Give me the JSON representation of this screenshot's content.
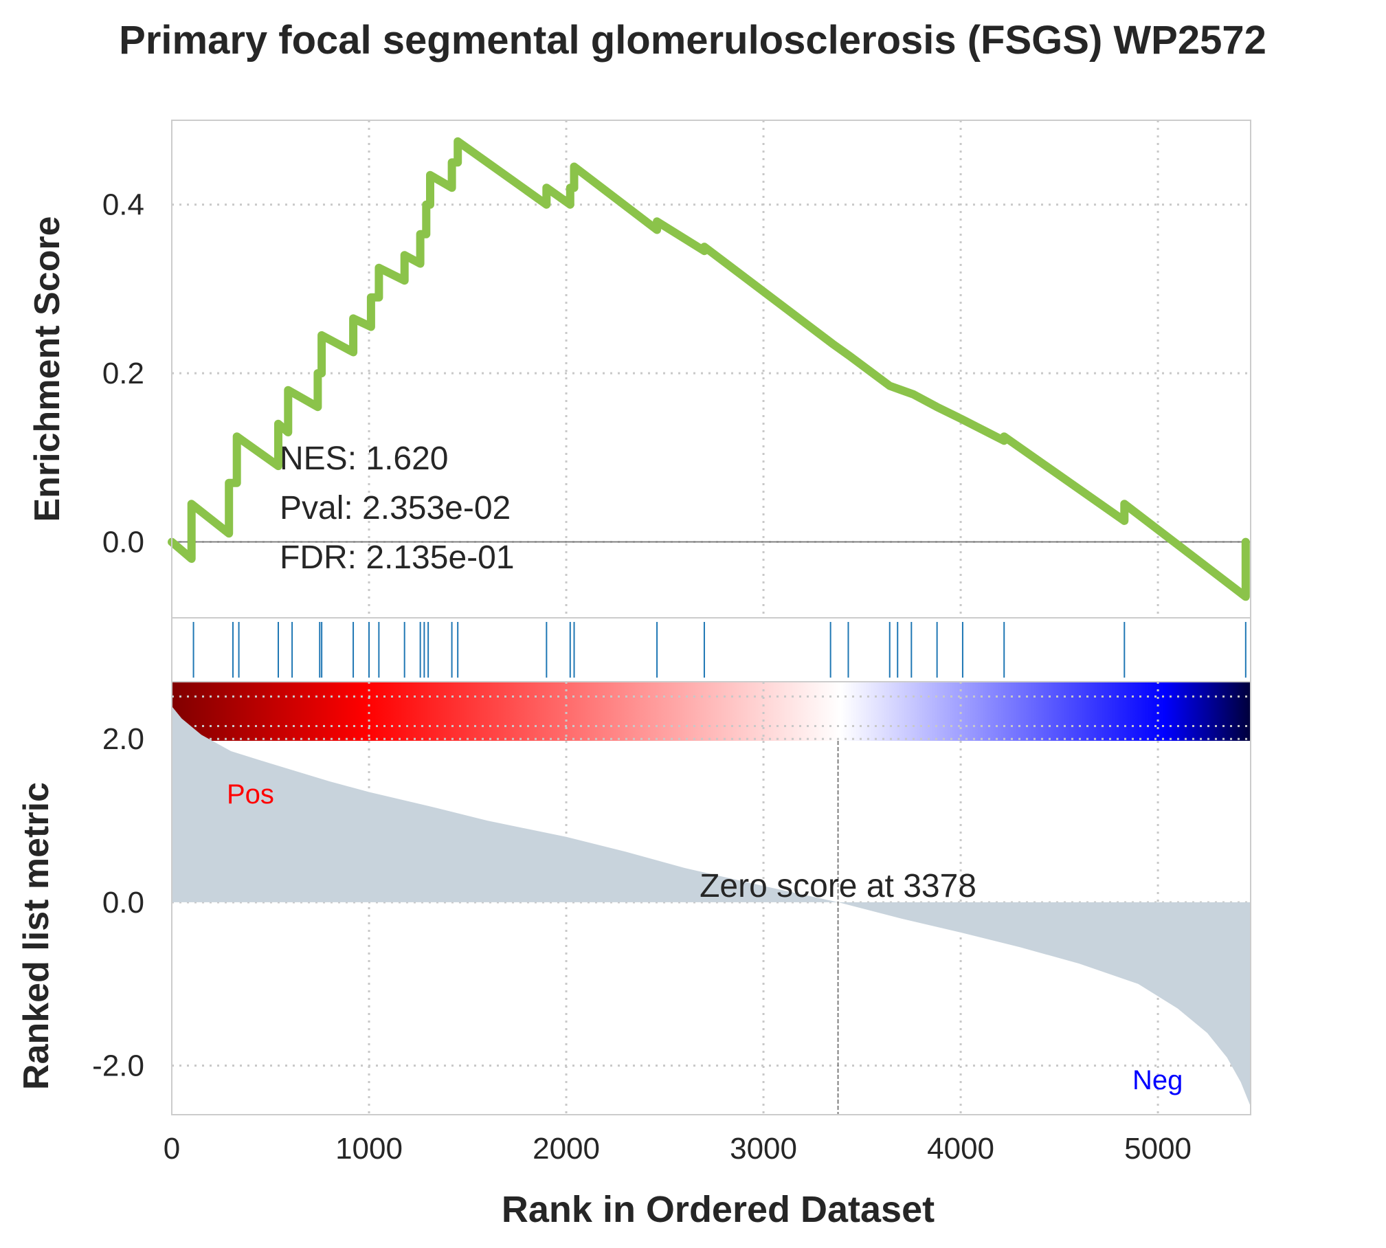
{
  "chart_data": {
    "type": "line",
    "title": "Primary focal segmental glomerulosclerosis (FSGS) WP2572",
    "xlabel": "Rank in Ordered Dataset",
    "xlim": [
      0,
      5470
    ],
    "x_ticks": [
      0,
      1000,
      2000,
      3000,
      4000,
      5000
    ],
    "grid": true,
    "es_panel": {
      "ylabel": "Enrichment Score",
      "ylim": [
        -0.09,
        0.5
      ],
      "y_ticks": [
        0.0,
        0.2,
        0.4
      ],
      "y_tick_labels": [
        "0.0",
        "0.2",
        "0.4"
      ],
      "line_color": "#8bc34a",
      "series": [
        {
          "x": [
            0,
            100,
            100,
            290,
            290,
            330,
            330,
            540,
            540,
            590,
            590,
            740,
            740,
            760,
            760,
            920,
            920,
            1010,
            1010,
            1050,
            1050,
            1180,
            1180,
            1260,
            1260,
            1290,
            1290,
            1310,
            1310,
            1420,
            1420,
            1450,
            1450,
            1900,
            1900,
            2020,
            2020,
            2040,
            2040,
            2460,
            2460,
            2700,
            2700,
            3350,
            3350,
            3440,
            3440,
            3640,
            3640,
            3700,
            3700,
            3760,
            3760,
            3880,
            3880,
            4010,
            4010,
            4220,
            4220,
            4830,
            4830,
            5445,
            5445
          ],
          "y": [
            0.0,
            -0.02,
            0.045,
            0.01,
            0.07,
            0.07,
            0.125,
            0.09,
            0.14,
            0.13,
            0.18,
            0.16,
            0.2,
            0.2,
            0.245,
            0.225,
            0.265,
            0.255,
            0.29,
            0.29,
            0.325,
            0.31,
            0.34,
            0.33,
            0.365,
            0.365,
            0.4,
            0.4,
            0.435,
            0.42,
            0.45,
            0.45,
            0.475,
            0.4,
            0.42,
            0.4,
            0.42,
            0.42,
            0.445,
            0.37,
            0.38,
            0.345,
            0.35,
            0.235,
            0.235,
            0.22,
            0.22,
            0.185,
            0.185,
            0.18,
            0.18,
            0.175,
            0.175,
            0.16,
            0.16,
            0.145,
            0.145,
            0.12,
            0.125,
            0.025,
            0.045,
            -0.065,
            0.0
          ]
        }
      ],
      "annotations": {
        "nes": "NES: 1.620",
        "pval": "Pval: 2.353e-02",
        "fdr": "FDR: 2.135e-01"
      }
    },
    "hits": [
      110,
      310,
      340,
      540,
      610,
      750,
      760,
      920,
      1000,
      1050,
      1180,
      1260,
      1280,
      1300,
      1420,
      1450,
      1900,
      2020,
      2040,
      2460,
      2700,
      3340,
      3430,
      3640,
      3680,
      3750,
      3880,
      4010,
      4220,
      4830,
      5445
    ],
    "hit_color": "#1f77b4",
    "color_bar": {
      "stops": [
        {
          "offset": 0.0,
          "color": "#800000"
        },
        {
          "offset": 0.18,
          "color": "#ff0000"
        },
        {
          "offset": 0.62,
          "color": "#ffffff"
        },
        {
          "offset": 0.92,
          "color": "#0000ff"
        },
        {
          "offset": 1.0,
          "color": "#00003a"
        }
      ]
    },
    "rank_panel": {
      "ylabel": "Ranked list metric",
      "ylim": [
        -2.6,
        2.7
      ],
      "y_ticks": [
        2.0,
        0.0,
        -2.0
      ],
      "y_tick_labels": [
        "2.0",
        "0.0",
        "-2.0"
      ],
      "fill_color": "#c8d3dc",
      "metric_profile": {
        "rank": [
          0,
          50,
          150,
          300,
          500,
          800,
          1000,
          1300,
          1600,
          2000,
          2300,
          2600,
          3000,
          3378,
          3700,
          4000,
          4300,
          4600,
          4900,
          5100,
          5250,
          5350,
          5420,
          5470
        ],
        "value": [
          2.4,
          2.25,
          2.05,
          1.85,
          1.7,
          1.48,
          1.35,
          1.18,
          1.0,
          0.8,
          0.62,
          0.42,
          0.2,
          0.0,
          -0.2,
          -0.37,
          -0.55,
          -0.75,
          -1.0,
          -1.3,
          -1.6,
          -1.9,
          -2.2,
          -2.5
        ]
      },
      "zero_score_rank": 3378,
      "zero_score_label": "Zero score at 3378",
      "pos_label": "Pos",
      "neg_label": "Neg",
      "pos_color": "#ff0000",
      "neg_color": "#0000ff"
    }
  }
}
